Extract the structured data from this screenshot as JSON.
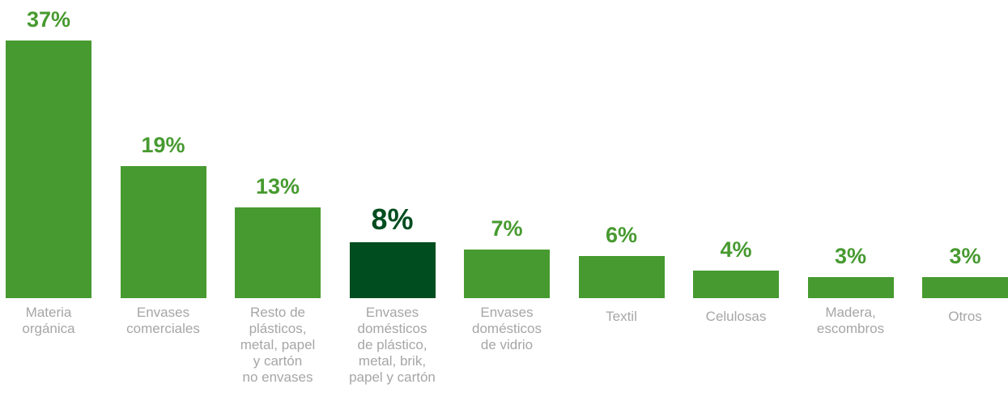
{
  "colors": {
    "bar": "#479a30",
    "bar_highlight": "#004d1f",
    "value_label": "#479a30",
    "value_label_highlight": "#004d1f",
    "category_label": "#a6a6a6"
  },
  "chart_data": {
    "type": "bar",
    "categories": [
      "Materia\norgánica",
      "Envases\ncomerciales",
      "Resto de\nplásticos,\nmetal, papel\ny cartón\nno envases",
      "Envases\ndomésticos\nde plástico,\nmetal, brik,\npapel y cartón",
      "Envases\ndomésticos\nde vidrio",
      "Textil",
      "Celulosas",
      "Madera,\nescombros",
      "Otros"
    ],
    "values": [
      37,
      19,
      13,
      8,
      7,
      6,
      4,
      3,
      3
    ],
    "labels": [
      "37%",
      "19%",
      "13%",
      "8%",
      "7%",
      "6%",
      "4%",
      "3%",
      "3%"
    ],
    "highlighted_index": 3,
    "ylim": [
      0,
      37
    ],
    "grid": false,
    "title": "",
    "xlabel": "",
    "ylabel": ""
  }
}
